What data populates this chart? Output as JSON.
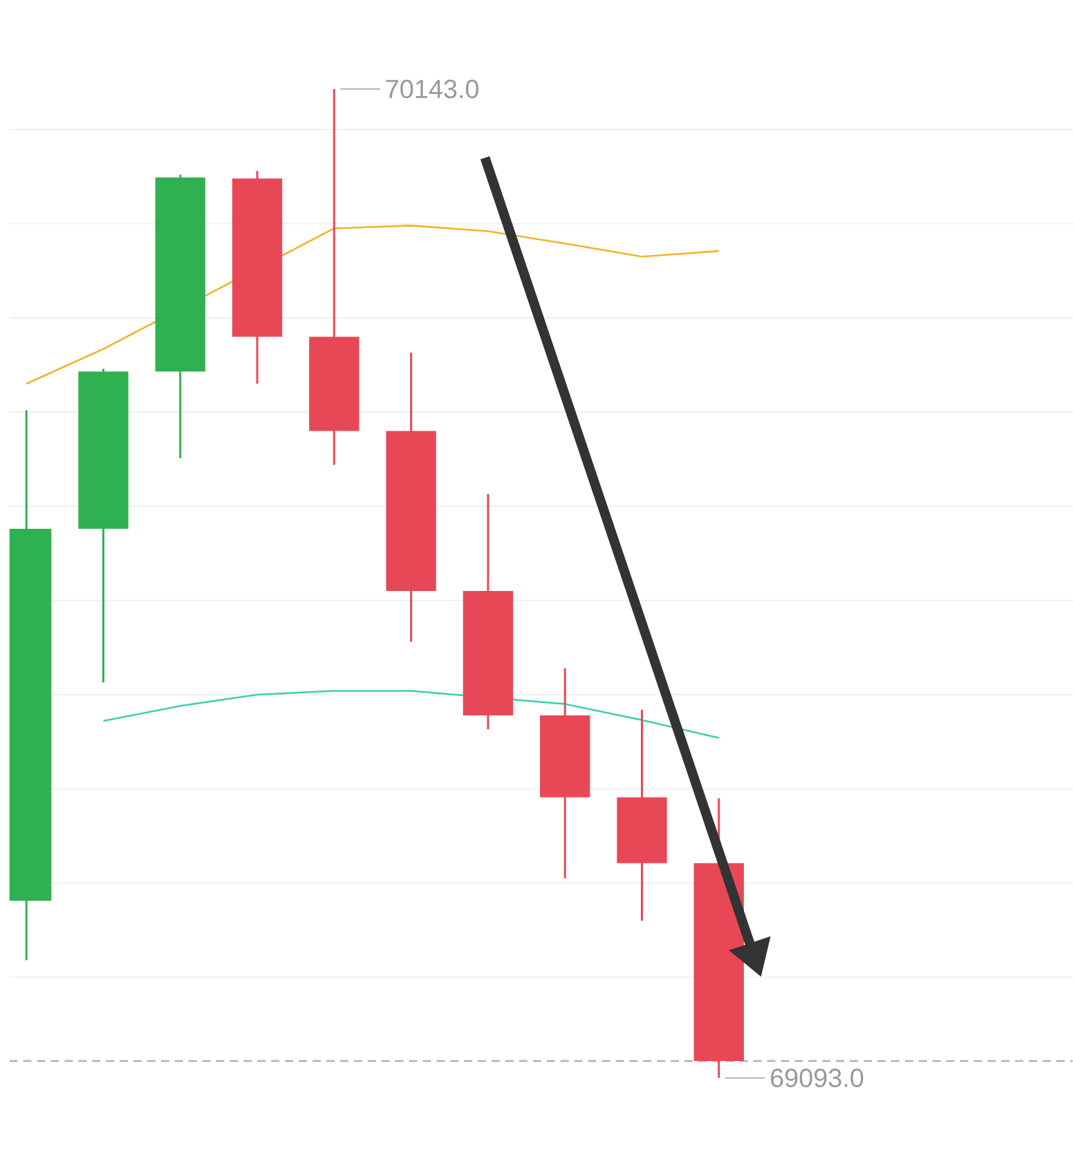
{
  "chart_data": {
    "type": "candlestick",
    "categories": [
      null,
      null,
      null,
      null,
      null,
      null,
      null,
      null,
      null,
      null
    ],
    "ohlc": [
      [
        69281,
        69802,
        69218,
        69676
      ],
      [
        69676,
        69846,
        69513,
        69843
      ],
      [
        69843,
        70052,
        69751,
        70049
      ],
      [
        70048,
        70056,
        69830,
        69880
      ],
      [
        69880,
        70143,
        69744,
        69780
      ],
      [
        69780,
        69863,
        69556,
        69610
      ],
      [
        69610,
        69713,
        69463,
        69478
      ],
      [
        69478,
        69528,
        69305,
        69391
      ],
      [
        69391,
        69484,
        69260,
        69321
      ],
      [
        69321,
        69390,
        69093,
        69111
      ]
    ],
    "colors": [
      "#2fb151",
      "#2fb151",
      "#2fb151",
      "#e84855",
      "#e84855",
      "#e84855",
      "#e84855",
      "#e84855",
      "#e84855",
      "#e84855"
    ],
    "series": [
      {
        "type": "line",
        "color": "#f0b429",
        "values": [
          69830,
          69867,
          null,
          null,
          69995,
          69998,
          69992,
          69979,
          69965,
          69971
        ]
      },
      {
        "type": "line",
        "color": "#3ccfb0",
        "values": [
          null,
          69472,
          69488,
          69500,
          69504,
          69504,
          null,
          69490,
          69473,
          69454
        ]
      }
    ],
    "yticks": [
      {
        "value": 69200,
        "label": null
      },
      {
        "value": 69300,
        "label": null
      },
      {
        "value": 69400,
        "label": null
      },
      {
        "value": 69500,
        "label": null
      },
      {
        "value": 69600,
        "label": null
      },
      {
        "value": 69700,
        "label": null
      },
      {
        "value": 69800,
        "label": null
      },
      {
        "value": 69900,
        "label": null
      },
      {
        "value": 70000,
        "label": null
      },
      {
        "value": 70100,
        "label": null
      }
    ],
    "grid": "y",
    "ref_lines": [
      {
        "axis": "y",
        "value": 69111,
        "color": "#b0b0b0",
        "line_style": "dashed"
      }
    ],
    "annotations": [
      "70143.0",
      "69093.0"
    ]
  }
}
